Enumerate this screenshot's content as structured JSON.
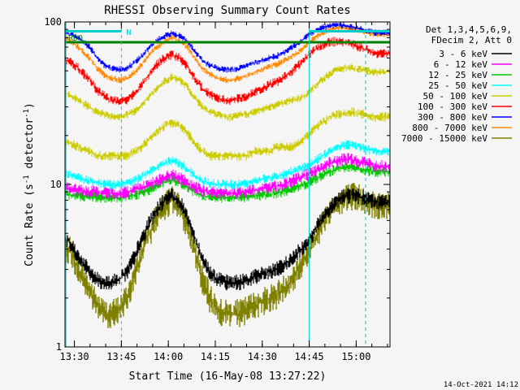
{
  "chart_data": {
    "type": "line",
    "title": "RHESSI Observing Summary Count Rates",
    "xlabel": "Start Time (16-May-08 13:27:22)",
    "ylabel": "Count Rate (s",
    "ylabel_sup": "-1",
    "ylabel_tail": " detector",
    "ylabel_sup2": "-1",
    "ylabel_end": ")",
    "yscale": "log",
    "ylim": [
      1,
      100
    ],
    "xlim_minutes": [
      13.45,
      15.18
    ],
    "x_ticks": [
      {
        "t": 13.5,
        "label": "13:30"
      },
      {
        "t": 13.75,
        "label": "13:45"
      },
      {
        "t": 14.0,
        "label": "14:00"
      },
      {
        "t": 14.25,
        "label": "14:15"
      },
      {
        "t": 14.5,
        "label": "14:30"
      },
      {
        "t": 14.75,
        "label": "14:45"
      },
      {
        "t": 15.0,
        "label": "15:00"
      }
    ],
    "y_ticks": [
      {
        "v": 1,
        "label": "1"
      },
      {
        "v": 10,
        "label": "10"
      },
      {
        "v": 100,
        "label": "100"
      }
    ],
    "legend_header": [
      "Det 1,3,4,5,6,9,",
      "FDecim 2, Att 0"
    ],
    "legend_position": "right",
    "series": [
      {
        "name": "3 - 6 keV",
        "color": "#000000"
      },
      {
        "name": "6 - 12 keV",
        "color": "#ff00ff"
      },
      {
        "name": "12 - 25 keV",
        "color": "#00cc00"
      },
      {
        "name": "25 - 50 keV",
        "color": "#00ffff"
      },
      {
        "name": "50 - 100 keV",
        "color": "#cccc00"
      },
      {
        "name": "100 - 300 keV",
        "color": "#ff0000"
      },
      {
        "name": "300 - 800 keV",
        "color": "#0000ff"
      },
      {
        "name": "800 - 7000 keV",
        "color": "#ff8800"
      },
      {
        "name": "7000 - 15000 keV",
        "color": "#808000"
      }
    ],
    "curves_approx": {
      "x_minutes": [
        13.47,
        13.52,
        13.58,
        13.62,
        13.66,
        13.7,
        13.74,
        13.78,
        13.82,
        13.86,
        13.9,
        13.94,
        13.98,
        14.02,
        14.06,
        14.1,
        14.14,
        14.18,
        14.22,
        14.26,
        14.3,
        14.34,
        14.38,
        14.42,
        14.46,
        14.5,
        14.54,
        14.58,
        14.62,
        14.66,
        14.7,
        14.74,
        14.78,
        14.82,
        14.86,
        14.9,
        14.94,
        14.98,
        15.02,
        15.06,
        15.1
      ],
      "orange": [
        78,
        70,
        60,
        52,
        47,
        45,
        44,
        45,
        49,
        55,
        63,
        70,
        76,
        80,
        77,
        70,
        60,
        52,
        48,
        45,
        44,
        44,
        45,
        47,
        49,
        51,
        53,
        55,
        58,
        62,
        66,
        73,
        80,
        86,
        90,
        92,
        92,
        90,
        88,
        86,
        84
      ],
      "blue": [
        85,
        80,
        70,
        60,
        54,
        52,
        51,
        52,
        56,
        62,
        70,
        77,
        82,
        85,
        82,
        76,
        66,
        58,
        54,
        52,
        51,
        51,
        52,
        54,
        56,
        58,
        60,
        62,
        65,
        70,
        75,
        82,
        88,
        92,
        95,
        96,
        95,
        93,
        91,
        88,
        86
      ],
      "red": [
        58,
        52,
        44,
        38,
        35,
        33,
        32,
        33,
        36,
        41,
        48,
        55,
        60,
        63,
        60,
        53,
        45,
        39,
        36,
        34,
        33,
        33,
        34,
        35,
        37,
        39,
        41,
        43,
        46,
        50,
        55,
        62,
        68,
        72,
        75,
        76,
        75,
        73,
        70,
        67,
        64
      ],
      "yellow": [
        36,
        33,
        30,
        28,
        27,
        26,
        26,
        27,
        28,
        31,
        35,
        39,
        43,
        46,
        44,
        40,
        34,
        30,
        28,
        27,
        26,
        26,
        27,
        27,
        28,
        29,
        30,
        31,
        32,
        33,
        34,
        36,
        40,
        44,
        48,
        51,
        52,
        52,
        51,
        50,
        49
      ],
      "yellow_low": [
        18,
        17,
        16,
        15,
        15,
        15,
        15,
        15,
        16,
        17,
        19,
        21,
        23,
        24,
        23,
        21,
        18,
        16,
        15,
        15,
        15,
        15,
        15,
        15,
        16,
        16,
        16,
        17,
        17,
        17,
        18,
        20,
        22,
        24,
        26,
        27,
        27,
        28,
        27,
        27,
        26
      ],
      "cyan": [
        11.5,
        11,
        10.5,
        10.2,
        10,
        10,
        10,
        10.2,
        10.6,
        11.2,
        12,
        12.8,
        13.5,
        14,
        13.5,
        12.5,
        11.2,
        10.5,
        10.2,
        10,
        10,
        10,
        10,
        10.2,
        10.5,
        10.8,
        11,
        11.2,
        11.5,
        12,
        12.5,
        13,
        14,
        15,
        16,
        17,
        17.5,
        17.5,
        17,
        16.5,
        16
      ],
      "magenta": [
        9.5,
        9.2,
        9,
        9,
        8.8,
        8.8,
        8.8,
        9,
        9.3,
        9.6,
        10,
        10.5,
        11,
        11.4,
        11,
        10.3,
        9.6,
        9.2,
        9,
        8.9,
        8.8,
        8.8,
        8.8,
        9,
        9.2,
        9.4,
        9.6,
        9.8,
        10.1,
        10.5,
        11,
        11.5,
        12,
        12.8,
        13.5,
        14,
        14.3,
        14.2,
        13.8,
        13.4,
        13
      ],
      "green": [
        8.6,
        8.5,
        8.4,
        8.3,
        8.3,
        8.3,
        8.3,
        8.4,
        8.6,
        8.9,
        9.3,
        9.8,
        10.3,
        10.7,
        10.3,
        9.6,
        9,
        8.6,
        8.4,
        8.3,
        8.3,
        8.3,
        8.3,
        8.4,
        8.5,
        8.6,
        8.7,
        8.9,
        9.1,
        9.4,
        9.8,
        10.2,
        10.8,
        11.4,
        12,
        12.5,
        12.8,
        12.8,
        12.5,
        12.2,
        12
      ],
      "black": [
        4.5,
        3.6,
        2.9,
        2.6,
        2.5,
        2.5,
        2.6,
        2.9,
        3.6,
        4.6,
        5.8,
        7,
        8,
        8.5,
        7.8,
        6.3,
        4.7,
        3.5,
        2.9,
        2.6,
        2.5,
        2.5,
        2.5,
        2.6,
        2.7,
        2.8,
        2.9,
        3.0,
        3.2,
        3.5,
        3.9,
        4.4,
        5.2,
        6.2,
        7.2,
        8,
        8.5,
        8.6,
        8.4,
        8.1,
        7.8
      ],
      "olive": [
        4.0,
        3.0,
        2.2,
        1.8,
        1.6,
        1.6,
        1.7,
        2.0,
        2.7,
        3.8,
        5.0,
        6.3,
        7.4,
        8.0,
        7.2,
        5.6,
        3.9,
        2.6,
        2.0,
        1.7,
        1.6,
        1.6,
        1.6,
        1.7,
        1.8,
        1.9,
        2.0,
        2.1,
        2.3,
        2.6,
        3.1,
        3.8,
        4.6,
        5.7,
        6.8,
        7.6,
        8.2,
        8.4,
        8.2,
        7.8,
        7.4
      ],
      "green_flat": 75
    }
  },
  "annotations": {
    "rdo_label": "RDO",
    "n_label": "N",
    "rdo_color": "#00cccc",
    "band_color": "#008000"
  },
  "footer": {
    "timestamp": "14-Oct-2021 14:12"
  }
}
